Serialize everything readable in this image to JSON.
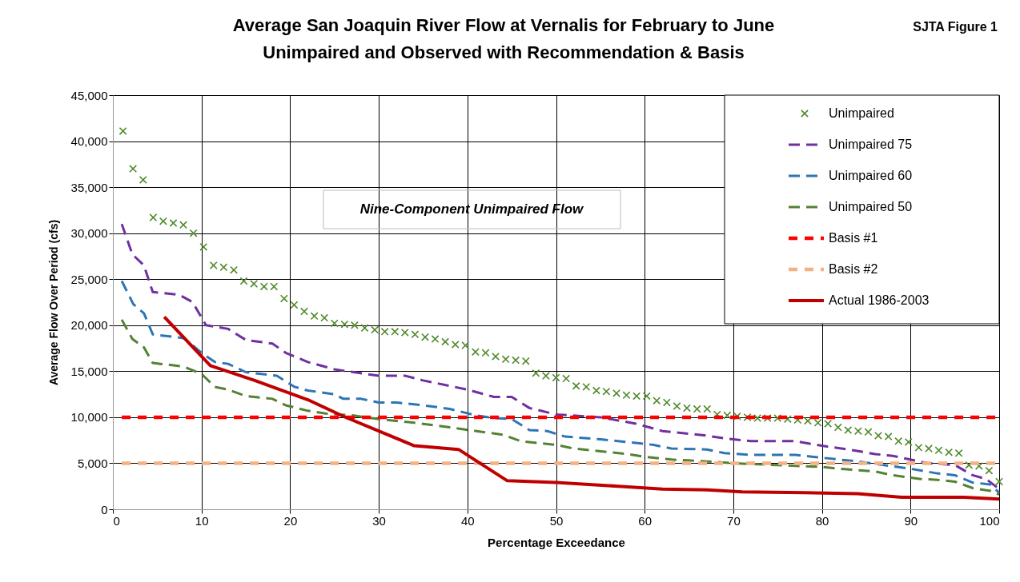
{
  "chart_data": {
    "type": "line",
    "title": "Average San Joaquin River Flow at Vernalis for February to June",
    "subtitle": "Unimpaired and Observed with Recommendation & Basis",
    "xlabel": "Percentage Exceedance",
    "ylabel": "Average Flow  Over Period (cfs)",
    "xlim": [
      0,
      100
    ],
    "xticks": [
      0,
      10,
      20,
      30,
      40,
      50,
      60,
      70,
      80,
      90,
      100
    ],
    "ylim": [
      0,
      45000
    ],
    "yticks": [
      0,
      {
        "value": 5000,
        "label": "5,000"
      },
      {
        "value": 10000,
        "label": "10,000"
      },
      {
        "value": 15000,
        "label": "15,000"
      },
      {
        "value": 20000,
        "label": "20,000"
      },
      {
        "value": 25000,
        "label": "25,000"
      },
      {
        "value": 30000,
        "label": "30,000"
      },
      {
        "value": 35000,
        "label": "35,000"
      },
      {
        "value": 40000,
        "label": "40,000"
      },
      {
        "value": 45000,
        "label": "45,000"
      }
    ],
    "grid": true,
    "legend": "top right",
    "annotations": [
      "SJTA Figure 1",
      "Nine-Component Unimpaired Flow"
    ],
    "series": [
      {
        "name": "Unimpaired",
        "type": "scatter",
        "marker": "cross",
        "color": "#4f8a2a",
        "x": [
          1.14,
          2.27,
          3.41,
          4.55,
          5.68,
          6.82,
          7.95,
          9.09,
          10.23,
          11.36,
          12.5,
          13.64,
          14.77,
          15.91,
          17.05,
          18.18,
          19.32,
          20.45,
          21.59,
          22.73,
          23.86,
          25,
          26.14,
          27.27,
          28.41,
          29.55,
          30.68,
          31.82,
          32.95,
          34.09,
          35.23,
          36.36,
          37.5,
          38.64,
          39.77,
          40.91,
          42.05,
          43.18,
          44.32,
          45.45,
          46.59,
          47.73,
          48.86,
          50,
          51.14,
          52.27,
          53.41,
          54.55,
          55.68,
          56.82,
          57.95,
          59.09,
          60.23,
          61.36,
          62.5,
          63.64,
          64.77,
          65.91,
          67.05,
          68.18,
          69.32,
          70.45,
          71.59,
          72.73,
          73.86,
          75,
          76.14,
          77.27,
          78.41,
          79.55,
          80.68,
          81.82,
          82.95,
          84.09,
          85.23,
          86.36,
          87.5,
          88.64,
          89.77,
          90.91,
          92.05,
          93.18,
          94.32,
          95.45,
          96.59,
          97.73,
          98.86,
          100
        ],
        "values": [
          41100,
          37000,
          35800,
          31700,
          31300,
          31100,
          30900,
          30000,
          28500,
          26500,
          26300,
          26000,
          24800,
          24500,
          24200,
          24200,
          22900,
          22200,
          21500,
          21000,
          20800,
          20200,
          20100,
          20000,
          19700,
          19500,
          19300,
          19300,
          19200,
          19000,
          18700,
          18500,
          18200,
          17900,
          17800,
          17100,
          17000,
          16600,
          16300,
          16200,
          16100,
          14800,
          14500,
          14300,
          14200,
          13400,
          13300,
          12900,
          12800,
          12600,
          12400,
          12300,
          12300,
          11800,
          11600,
          11200,
          11000,
          10900,
          10900,
          10300,
          10200,
          10100,
          10000,
          9900,
          9900,
          9900,
          9800,
          9700,
          9600,
          9400,
          9300,
          8900,
          8600,
          8500,
          8400,
          8000,
          7900,
          7400,
          7300,
          6700,
          6600,
          6400,
          6200,
          6100,
          4800,
          4700,
          4200,
          3000
        ]
      },
      {
        "name": "Unimpaired 75",
        "line_style": "dashed",
        "color": "#7030a0",
        "x": [
          1,
          2.2,
          3.5,
          4.5,
          7.5,
          9,
          10.5,
          13,
          15,
          18,
          19.5,
          22,
          25,
          30,
          33,
          35,
          40,
          43,
          45,
          47,
          50,
          55,
          59,
          62,
          67,
          69,
          72,
          77,
          80,
          83,
          86,
          88,
          92,
          95,
          97,
          98.5,
          100
        ],
        "values": [
          31000,
          27700,
          26500,
          23600,
          23300,
          22500,
          20000,
          19600,
          18400,
          18000,
          17000,
          16000,
          15200,
          14500,
          14500,
          14000,
          13000,
          12200,
          12200,
          11000,
          10300,
          10000,
          9300,
          8500,
          8000,
          7700,
          7400,
          7400,
          6900,
          6500,
          6000,
          5800,
          5000,
          4800,
          3700,
          3300,
          2200
        ]
      },
      {
        "name": "Unimpaired 60",
        "line_style": "dashed",
        "color": "#2e75b6",
        "x": [
          1,
          2.3,
          3.5,
          4.5,
          8,
          10,
          11.5,
          13,
          15,
          18.5,
          20.5,
          22,
          25,
          26,
          28,
          30,
          32,
          35,
          38,
          41,
          43,
          45,
          47,
          49,
          51,
          55,
          58,
          61,
          63,
          67,
          69,
          72,
          77,
          80,
          84,
          87,
          90,
          93,
          95,
          97,
          99,
          100
        ],
        "values": [
          24800,
          22300,
          21300,
          19000,
          18600,
          17000,
          16000,
          15800,
          14900,
          14500,
          13300,
          12900,
          12500,
          12000,
          12000,
          11600,
          11600,
          11300,
          10900,
          10200,
          9900,
          9800,
          8600,
          8500,
          7900,
          7600,
          7300,
          7000,
          6600,
          6500,
          6100,
          5900,
          5900,
          5600,
          5200,
          4800,
          4400,
          3900,
          3700,
          2900,
          2700,
          1800
        ]
      },
      {
        "name": "Unimpaired 50",
        "line_style": "dashed",
        "color": "#548235",
        "x": [
          1,
          2.2,
          3.5,
          4.5,
          8,
          10,
          11.5,
          13,
          15,
          18,
          19.5,
          22,
          24,
          27,
          30,
          34,
          38,
          41,
          44,
          46,
          50,
          52,
          55,
          58,
          60,
          63,
          67,
          70,
          75,
          80,
          82,
          86,
          88,
          91,
          93,
          95,
          97,
          99,
          100
        ],
        "values": [
          20600,
          18500,
          17600,
          15900,
          15500,
          14700,
          13300,
          13000,
          12300,
          12000,
          11300,
          10700,
          10400,
          10200,
          9800,
          9400,
          8900,
          8500,
          8100,
          7400,
          7000,
          6600,
          6300,
          6000,
          5700,
          5400,
          5200,
          5000,
          4800,
          4600,
          4400,
          4100,
          3700,
          3300,
          3200,
          3000,
          2300,
          2000,
          1600
        ]
      },
      {
        "name": "Basis #1",
        "line_style": "dashed",
        "color": "#ff0000",
        "x": [
          1,
          100
        ],
        "values": [
          10000,
          10000
        ]
      },
      {
        "name": "Basis #2",
        "line_style": "dashed",
        "color": "#f4b183",
        "x": [
          1,
          100
        ],
        "values": [
          5000,
          5000
        ]
      },
      {
        "name": "Actual 1986-2003",
        "line_style": "solid",
        "color": "#c00000",
        "x": [
          5.8,
          11,
          16,
          22,
          26,
          34,
          39,
          44.5,
          50,
          57,
          62,
          67,
          71,
          78,
          84,
          89,
          96,
          100
        ],
        "values": [
          20900,
          15600,
          14000,
          11900,
          10100,
          6900,
          6500,
          3100,
          2900,
          2500,
          2200,
          2100,
          1900,
          1800,
          1700,
          1300,
          1300,
          1100
        ]
      }
    ]
  }
}
